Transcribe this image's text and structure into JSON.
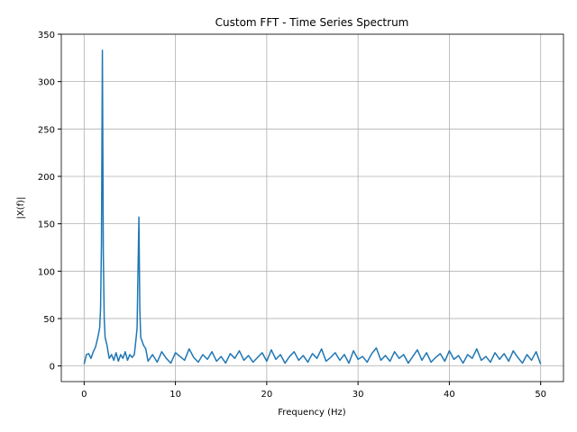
{
  "chart_data": {
    "type": "line",
    "title": "Custom FFT - Time Series Spectrum",
    "x_label": "Frequency (Hz)",
    "y_label": "|X(f)|",
    "x": [
      0,
      0.25,
      0.5,
      0.75,
      1,
      1.25,
      1.5,
      1.7,
      1.8,
      1.9,
      2,
      2.1,
      2.2,
      2.3,
      2.5,
      2.75,
      3,
      3.25,
      3.5,
      3.75,
      4,
      4.25,
      4.5,
      4.75,
      5,
      5.25,
      5.5,
      5.7,
      5.8,
      5.9,
      6,
      6.1,
      6.2,
      6.5,
      6.75,
      7,
      7.5,
      8,
      8.5,
      9,
      9.5,
      10,
      10.5,
      11,
      11.5,
      12,
      12.5,
      13,
      13.5,
      14,
      14.5,
      15,
      15.5,
      16,
      16.5,
      17,
      17.5,
      18,
      18.5,
      19,
      19.5,
      20,
      20.5,
      21,
      21.5,
      22,
      22.5,
      23,
      23.5,
      24,
      24.5,
      25,
      25.5,
      26,
      26.5,
      27,
      27.5,
      28,
      28.5,
      29,
      29.5,
      30,
      30.5,
      31,
      31.5,
      32,
      32.5,
      33,
      33.5,
      34,
      34.5,
      35,
      35.5,
      36,
      36.5,
      37,
      37.5,
      38,
      38.5,
      39,
      39.5,
      40,
      40.5,
      41,
      41.5,
      42,
      42.5,
      43,
      43.5,
      44,
      44.5,
      45,
      45.5,
      46,
      46.5,
      47,
      47.5,
      48,
      48.5,
      49,
      49.5,
      50
    ],
    "series": [
      {
        "name": "spectrum",
        "color": "#1f77b4",
        "values": [
          2,
          12,
          13,
          8,
          15,
          20,
          30,
          40,
          60,
          130,
          333,
          120,
          50,
          30,
          22,
          8,
          12,
          6,
          14,
          5,
          12,
          8,
          15,
          6,
          12,
          9,
          12,
          30,
          40,
          100,
          157,
          60,
          30,
          22,
          18,
          5,
          12,
          4,
          15,
          8,
          3,
          14,
          10,
          6,
          18,
          9,
          4,
          12,
          7,
          15,
          5,
          10,
          3,
          13,
          8,
          16,
          6,
          11,
          4,
          9,
          14,
          5,
          17,
          7,
          12,
          3,
          10,
          15,
          6,
          11,
          4,
          13,
          8,
          18,
          5,
          9,
          14,
          6,
          12,
          3,
          16,
          7,
          10,
          4,
          13,
          19,
          6,
          11,
          5,
          15,
          8,
          12,
          3,
          10,
          17,
          6,
          14,
          4,
          9,
          13,
          5,
          16,
          7,
          11,
          3,
          12,
          8,
          18,
          6,
          10,
          4,
          14,
          7,
          13,
          5,
          16,
          9,
          3,
          12,
          6,
          15,
          2
        ]
      }
    ],
    "xlim": [
      -2.5,
      52.5
    ],
    "ylim": [
      -16.5,
      350
    ],
    "xticks": [
      0,
      10,
      20,
      30,
      40,
      50
    ],
    "yticks": [
      0,
      50,
      100,
      150,
      200,
      250,
      300,
      350
    ],
    "grid": true
  }
}
